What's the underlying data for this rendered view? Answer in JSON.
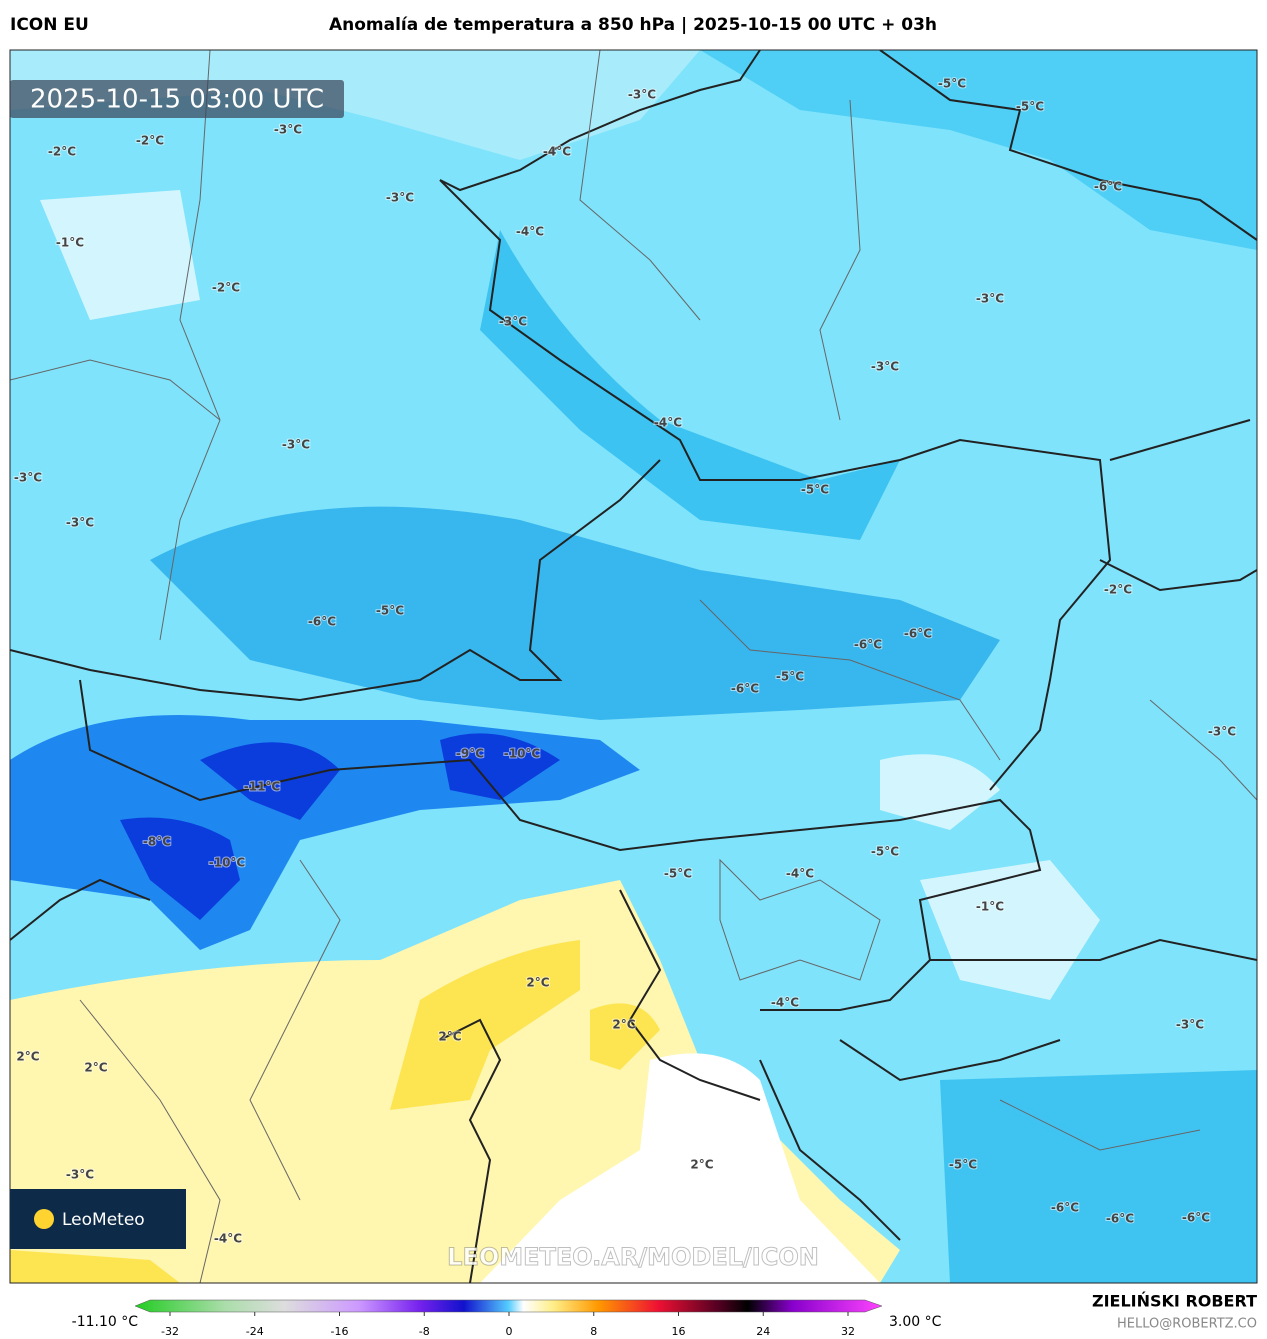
{
  "header": {
    "model": "ICON EU",
    "title": "Anomalía de temperatura a 850 hPa | 2025-10-15 00 UTC + 03h"
  },
  "timestamp": "2025-10-15 03:00 UTC",
  "contour_labels": [
    "-2°C",
    "-2°C",
    "-3°C",
    "-3°C",
    "-5°C",
    "-5°C",
    "-4°C",
    "-3°C",
    "-4°C",
    "-6°C",
    "-1°C",
    "-2°C",
    "-3°C",
    "-3°C",
    "-3°C",
    "-4°C",
    "-3°C",
    "-3°C",
    "-5°C",
    "-3°C",
    "-2°C",
    "-6°C",
    "-5°C",
    "-6°C",
    "-6°C",
    "-5°C",
    "-6°C",
    "-3°C",
    "-9°C",
    "-10°C",
    "-11°C",
    "-8°C",
    "-10°C",
    "-5°C",
    "-5°C",
    "-4°C",
    "-1°C",
    "2°C",
    "2°C",
    "2°C",
    "-4°C",
    "-3°C",
    "2°C",
    "2°C",
    "2°C",
    "-5°C",
    "-3°C",
    "-6°C",
    "-6°C",
    "-6°C",
    "-4°C"
  ],
  "logo": "LeoMeteo",
  "watermark": "LEOMETEO.AR/MODEL/ICON",
  "colorbar": {
    "min_label": "-11.10 °C",
    "max_label": "3.00 °C",
    "ticks": [
      -32,
      -24,
      -16,
      -8,
      0,
      8,
      16,
      24,
      32
    ]
  },
  "credits": {
    "author": "ZIELIŃSKI ROBERT",
    "email": "HELLO@ROBERTZ.CO"
  }
}
